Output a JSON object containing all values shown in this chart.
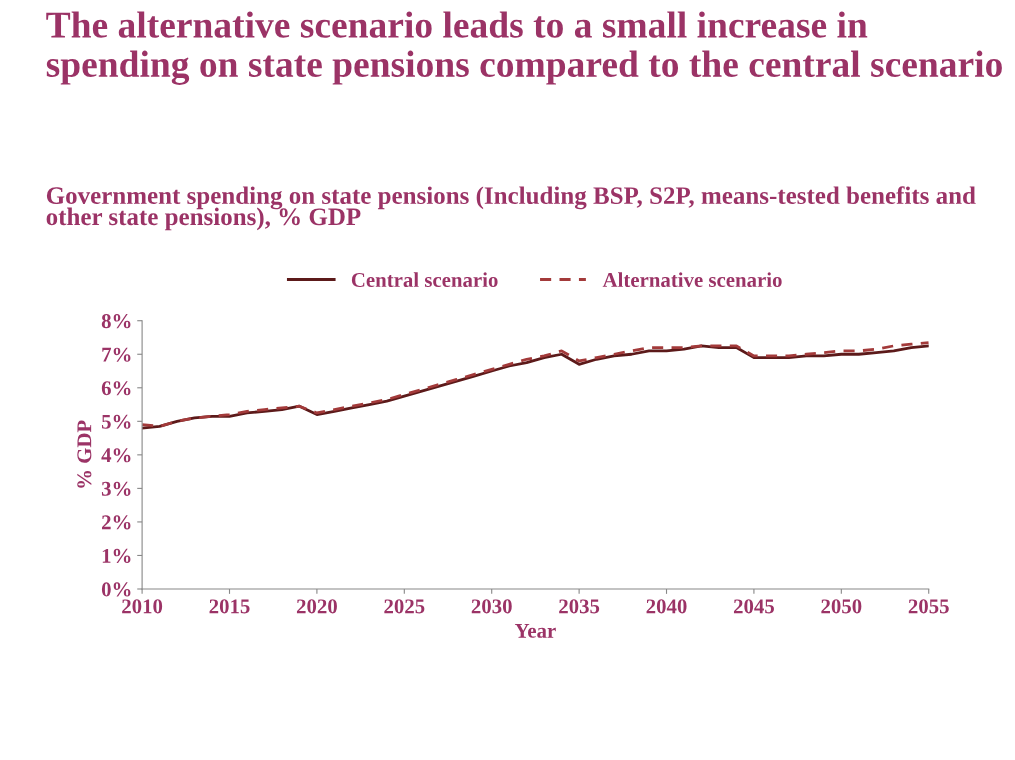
{
  "chart_data": {
    "type": "line",
    "title": "The alternative scenario leads to a small increase in spending on state pensions compared to the central scenario",
    "subtitle": "Government spending on state pensions (Including BSP, S2P, means-tested benefits and other state pensions), % GDP",
    "xlabel": "Year",
    "ylabel": "% GDP",
    "x": [
      2010,
      2011,
      2012,
      2013,
      2014,
      2015,
      2016,
      2017,
      2018,
      2019,
      2020,
      2021,
      2022,
      2023,
      2024,
      2025,
      2026,
      2027,
      2028,
      2029,
      2030,
      2031,
      2032,
      2033,
      2034,
      2035,
      2036,
      2037,
      2038,
      2039,
      2040,
      2041,
      2042,
      2043,
      2044,
      2045,
      2046,
      2047,
      2048,
      2049,
      2050,
      2051,
      2052,
      2053,
      2054,
      2055
    ],
    "series": [
      {
        "name": "Central scenario",
        "color": "#5c1a1a",
        "line_style": "solid",
        "values": [
          4.8,
          4.85,
          5.0,
          5.1,
          5.15,
          5.15,
          5.25,
          5.3,
          5.35,
          5.45,
          5.2,
          5.3,
          5.4,
          5.5,
          5.6,
          5.75,
          5.9,
          6.05,
          6.2,
          6.35,
          6.5,
          6.65,
          6.75,
          6.9,
          7.0,
          6.7,
          6.85,
          6.95,
          7.0,
          7.1,
          7.1,
          7.15,
          7.25,
          7.2,
          7.2,
          6.9,
          6.9,
          6.9,
          6.95,
          6.95,
          7.0,
          7.0,
          7.05,
          7.1,
          7.2,
          7.25
        ]
      },
      {
        "name": "Alternative scenario",
        "color": "#a33a3a",
        "line_style": "dashed",
        "values": [
          4.9,
          4.85,
          5.0,
          5.1,
          5.15,
          5.2,
          5.3,
          5.35,
          5.4,
          5.45,
          5.25,
          5.35,
          5.45,
          5.55,
          5.65,
          5.8,
          5.95,
          6.1,
          6.25,
          6.4,
          6.55,
          6.7,
          6.85,
          6.95,
          7.1,
          6.8,
          6.9,
          7.0,
          7.1,
          7.2,
          7.2,
          7.2,
          7.25,
          7.25,
          7.25,
          6.95,
          6.95,
          6.95,
          7.0,
          7.05,
          7.1,
          7.1,
          7.15,
          7.25,
          7.3,
          7.35
        ]
      }
    ],
    "xlim": [
      2010,
      2055
    ],
    "xticks": [
      2010,
      2015,
      2020,
      2025,
      2030,
      2035,
      2040,
      2045,
      2050,
      2055
    ],
    "ylim": [
      0,
      8
    ],
    "yticks": [
      {
        "value": 0,
        "label": "0%"
      },
      {
        "value": 1,
        "label": "1%"
      },
      {
        "value": 2,
        "label": "2%"
      },
      {
        "value": 3,
        "label": "3%"
      },
      {
        "value": 4,
        "label": "4%"
      },
      {
        "value": 5,
        "label": "5%"
      },
      {
        "value": 6,
        "label": "6%"
      },
      {
        "value": 7,
        "label": "7%"
      },
      {
        "value": 8,
        "label": "8%"
      }
    ],
    "grid": false,
    "legend": "top",
    "marker": "none"
  }
}
